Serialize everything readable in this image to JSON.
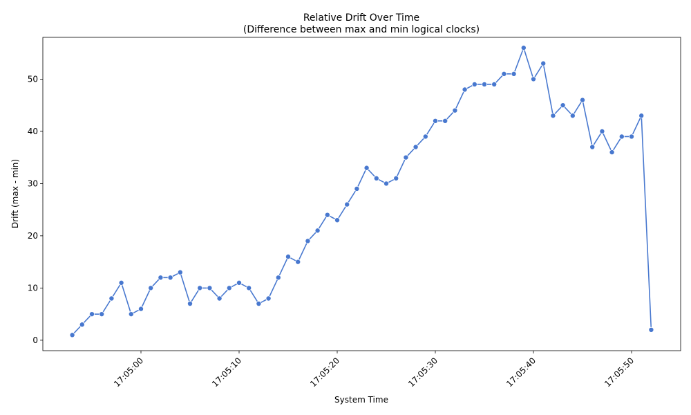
{
  "chart_data": {
    "type": "line",
    "title": "Relative Drift Over Time",
    "subtitle": "(Difference between max and min logical clocks)",
    "xlabel": "System Time",
    "ylabel": "Drift (max - min)",
    "x_ticks": [
      "17:05:00",
      "17:05:10",
      "17:05:20",
      "17:05:30",
      "17:05:40",
      "17:05:50"
    ],
    "y_ticks": [
      0,
      10,
      20,
      30,
      40,
      50
    ],
    "xlim": [
      "17:04:50",
      "17:05:55"
    ],
    "ylim": [
      -2,
      58
    ],
    "color": "#4878cf",
    "series": [
      {
        "x": [
          "17:04:53",
          "17:04:54",
          "17:04:55",
          "17:04:56",
          "17:04:57",
          "17:04:58",
          "17:04:59",
          "17:05:00",
          "17:05:01",
          "17:05:02",
          "17:05:03",
          "17:05:04",
          "17:05:05",
          "17:05:06",
          "17:05:07",
          "17:05:08",
          "17:05:09",
          "17:05:10",
          "17:05:11",
          "17:05:12",
          "17:05:13",
          "17:05:14",
          "17:05:15",
          "17:05:16",
          "17:05:17",
          "17:05:18",
          "17:05:19",
          "17:05:20",
          "17:05:21",
          "17:05:22",
          "17:05:23",
          "17:05:24",
          "17:05:25",
          "17:05:26",
          "17:05:27",
          "17:05:28",
          "17:05:29",
          "17:05:30",
          "17:05:31",
          "17:05:32",
          "17:05:33",
          "17:05:34",
          "17:05:35",
          "17:05:36",
          "17:05:37",
          "17:05:38",
          "17:05:39",
          "17:05:40",
          "17:05:41",
          "17:05:42",
          "17:05:43",
          "17:05:44",
          "17:05:45",
          "17:05:46",
          "17:05:47",
          "17:05:48",
          "17:05:49",
          "17:05:50",
          "17:05:51",
          "17:05:52"
        ],
        "values": [
          1,
          3,
          5,
          5,
          8,
          11,
          5,
          6,
          10,
          12,
          12,
          13,
          7,
          10,
          10,
          8,
          10,
          11,
          10,
          7,
          8,
          12,
          16,
          15,
          19,
          21,
          24,
          23,
          26,
          29,
          33,
          31,
          30,
          31,
          35,
          37,
          39,
          42,
          42,
          44,
          48,
          49,
          49,
          49,
          51,
          51,
          56,
          50,
          53,
          43,
          45,
          43,
          46,
          37,
          40,
          36,
          39,
          39,
          43,
          2
        ]
      }
    ]
  }
}
